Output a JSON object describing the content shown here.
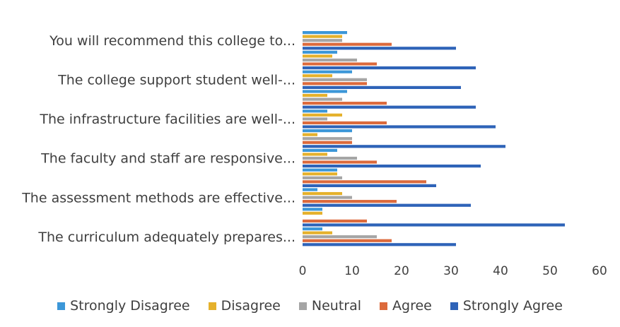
{
  "chart_data": {
    "type": "bar",
    "orientation": "horizontal",
    "title": "",
    "xlabel": "",
    "ylabel": "",
    "xlim": [
      0,
      60
    ],
    "xticks": [
      0,
      10,
      20,
      30,
      40,
      50,
      60
    ],
    "grid": false,
    "legend_position": "bottom",
    "groups": [
      {
        "label": "You will recommend this college to...",
        "rows": [
          {
            "series": "Strongly Disagree",
            "value": 9
          },
          {
            "series": "Disagree",
            "value": 8
          },
          {
            "series": "Neutral",
            "value": 8
          },
          {
            "series": "Agree",
            "value": 18
          },
          {
            "series": "Strongly Agree",
            "value": 31
          }
        ]
      },
      {
        "label": "",
        "rows": [
          {
            "series": "Strongly Disagree",
            "value": 7
          },
          {
            "series": "Disagree",
            "value": 6
          },
          {
            "series": "Neutral",
            "value": 11
          },
          {
            "series": "Agree",
            "value": 15
          },
          {
            "series": "Strongly Agree",
            "value": 35
          }
        ]
      },
      {
        "label": "The college support student well-...",
        "rows": [
          {
            "series": "Strongly Disagree",
            "value": 10
          },
          {
            "series": "Disagree",
            "value": 6
          },
          {
            "series": "Neutral",
            "value": 13
          },
          {
            "series": "Agree",
            "value": 13
          },
          {
            "series": "Strongly Agree",
            "value": 32
          }
        ]
      },
      {
        "label": "",
        "rows": [
          {
            "series": "Strongly Disagree",
            "value": 9
          },
          {
            "series": "Disagree",
            "value": 5
          },
          {
            "series": "Neutral",
            "value": 8
          },
          {
            "series": "Agree",
            "value": 17
          },
          {
            "series": "Strongly Agree",
            "value": 35
          }
        ]
      },
      {
        "label": "The infrastructure facilities are well-...",
        "rows": [
          {
            "series": "Strongly Disagree",
            "value": 5
          },
          {
            "series": "Disagree",
            "value": 8
          },
          {
            "series": "Neutral",
            "value": 5
          },
          {
            "series": "Agree",
            "value": 17
          },
          {
            "series": "Strongly Agree",
            "value": 39
          }
        ]
      },
      {
        "label": "",
        "rows": [
          {
            "series": "Strongly Disagree",
            "value": 10
          },
          {
            "series": "Disagree",
            "value": 3
          },
          {
            "series": "Neutral",
            "value": 10
          },
          {
            "series": "Agree",
            "value": 10
          },
          {
            "series": "Strongly Agree",
            "value": 41
          }
        ]
      },
      {
        "label": "The faculty and staff are responsive...",
        "rows": [
          {
            "series": "Strongly Disagree",
            "value": 7
          },
          {
            "series": "Disagree",
            "value": 5
          },
          {
            "series": "Neutral",
            "value": 11
          },
          {
            "series": "Agree",
            "value": 15
          },
          {
            "series": "Strongly Agree",
            "value": 36
          }
        ]
      },
      {
        "label": "",
        "rows": [
          {
            "series": "Strongly Disagree",
            "value": 7
          },
          {
            "series": "Disagree",
            "value": 7
          },
          {
            "series": "Neutral",
            "value": 8
          },
          {
            "series": "Agree",
            "value": 25
          },
          {
            "series": "Strongly Agree",
            "value": 27
          }
        ]
      },
      {
        "label": "The assessment methods are  effective...",
        "rows": [
          {
            "series": "Strongly Disagree",
            "value": 3
          },
          {
            "series": "Disagree",
            "value": 8
          },
          {
            "series": "Neutral",
            "value": 10
          },
          {
            "series": "Agree",
            "value": 19
          },
          {
            "series": "Strongly Agree",
            "value": 34
          }
        ]
      },
      {
        "label": "",
        "rows": [
          {
            "series": "Strongly Disagree",
            "value": 4
          },
          {
            "series": "Disagree",
            "value": 4
          },
          {
            "series": "Neutral",
            "value": 0
          },
          {
            "series": "Agree",
            "value": 13
          },
          {
            "series": "Strongly Agree",
            "value": 53
          }
        ]
      },
      {
        "label": "The curriculum adequately prepares...",
        "rows": [
          {
            "series": "Strongly Disagree",
            "value": 4
          },
          {
            "series": "Disagree",
            "value": 6
          },
          {
            "series": "Neutral",
            "value": 15
          },
          {
            "series": "Agree",
            "value": 18
          },
          {
            "series": "Strongly Agree",
            "value": 31
          }
        ]
      }
    ],
    "legend": [
      {
        "name": "Strongly Disagree",
        "color": "#3c97d8"
      },
      {
        "name": "Disagree",
        "color": "#e5b12c"
      },
      {
        "name": "Neutral",
        "color": "#a5a5a5"
      },
      {
        "name": "Agree",
        "color": "#dc6a3c"
      },
      {
        "name": "Strongly Agree",
        "color": "#2e63b8"
      }
    ]
  }
}
